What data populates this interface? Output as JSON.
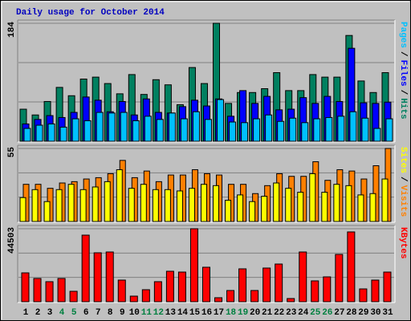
{
  "chart_data": [
    {
      "type": "bar",
      "title": "Daily usage for October 2014",
      "legend_separator": "/",
      "ylim": [
        0,
        184
      ],
      "yticks": [
        184
      ],
      "series": [
        {
          "name": "Hits",
          "color": "#008060",
          "values": [
            50,
            41,
            62,
            84,
            71,
            97,
            100,
            90,
            74,
            104,
            73,
            96,
            88,
            57,
            115,
            90,
            184,
            59,
            76,
            76,
            82,
            107,
            79,
            79,
            104,
            100,
            100,
            165,
            94,
            76,
            107
          ]
        },
        {
          "name": "Files",
          "color": "#0000ff",
          "values": [
            27,
            34,
            40,
            37,
            45,
            69,
            64,
            46,
            62,
            41,
            66,
            45,
            44,
            54,
            64,
            55,
            66,
            39,
            79,
            59,
            70,
            49,
            50,
            68,
            59,
            70,
            62,
            145,
            60,
            59,
            61
          ]
        },
        {
          "name": "Pages",
          "color": "#00c0ff",
          "values": [
            20,
            25,
            27,
            22,
            35,
            32,
            45,
            44,
            45,
            32,
            39,
            34,
            44,
            35,
            46,
            34,
            65,
            30,
            29,
            35,
            41,
            31,
            36,
            29,
            35,
            37,
            39,
            46,
            36,
            20,
            35
          ]
        }
      ]
    },
    {
      "type": "bar",
      "ylim": [
        0,
        55
      ],
      "yticks": [
        55
      ],
      "series": [
        {
          "name": "Visits",
          "color": "#ff8000",
          "values": [
            28,
            28,
            25,
            29,
            30,
            32,
            33,
            36,
            46,
            33,
            38,
            30,
            35,
            35,
            39,
            36,
            35,
            28,
            28,
            21,
            27,
            36,
            34,
            34,
            45,
            31,
            39,
            38,
            32,
            42,
            55
          ]
        },
        {
          "name": "Sites",
          "color": "#ffff00",
          "values": [
            18,
            24,
            15,
            24,
            28,
            24,
            26,
            30,
            39,
            25,
            28,
            24,
            24,
            23,
            25,
            28,
            27,
            16,
            20,
            15,
            19,
            29,
            25,
            22,
            36,
            22,
            28,
            27,
            20,
            21,
            32
          ]
        }
      ]
    },
    {
      "type": "bar",
      "ylim": [
        0,
        44503
      ],
      "yticks": [
        44503
      ],
      "categories": [
        "1",
        "2",
        "3",
        "4",
        "5",
        "6",
        "7",
        "8",
        "9",
        "10",
        "11",
        "12",
        "13",
        "14",
        "15",
        "16",
        "17",
        "18",
        "19",
        "20",
        "21",
        "22",
        "23",
        "24",
        "25",
        "26",
        "27",
        "28",
        "29",
        "30",
        "31"
      ],
      "category_colors": [
        "#000000",
        "#000000",
        "#000000",
        "#008040",
        "#008040",
        "#000000",
        "#000000",
        "#000000",
        "#000000",
        "#000000",
        "#008040",
        "#008040",
        "#000000",
        "#000000",
        "#000000",
        "#000000",
        "#000000",
        "#008040",
        "#008040",
        "#000000",
        "#000000",
        "#000000",
        "#000000",
        "#000000",
        "#008040",
        "#008040",
        "#000000",
        "#000000",
        "#000000",
        "#000000",
        "#000000"
      ],
      "series": [
        {
          "name": "KBytes",
          "color": "#ff0000",
          "values": [
            17600,
            14180,
            12230,
            14180,
            6360,
            40590,
            29830,
            30320,
            13200,
            3420,
            7340,
            12230,
            18580,
            18090,
            44503,
            21030,
            2450,
            6850,
            20050,
            6850,
            20540,
            22980,
            1960,
            30320,
            12720,
            15160,
            28850,
            42550,
            7820,
            13200,
            18090
          ]
        }
      ]
    }
  ]
}
